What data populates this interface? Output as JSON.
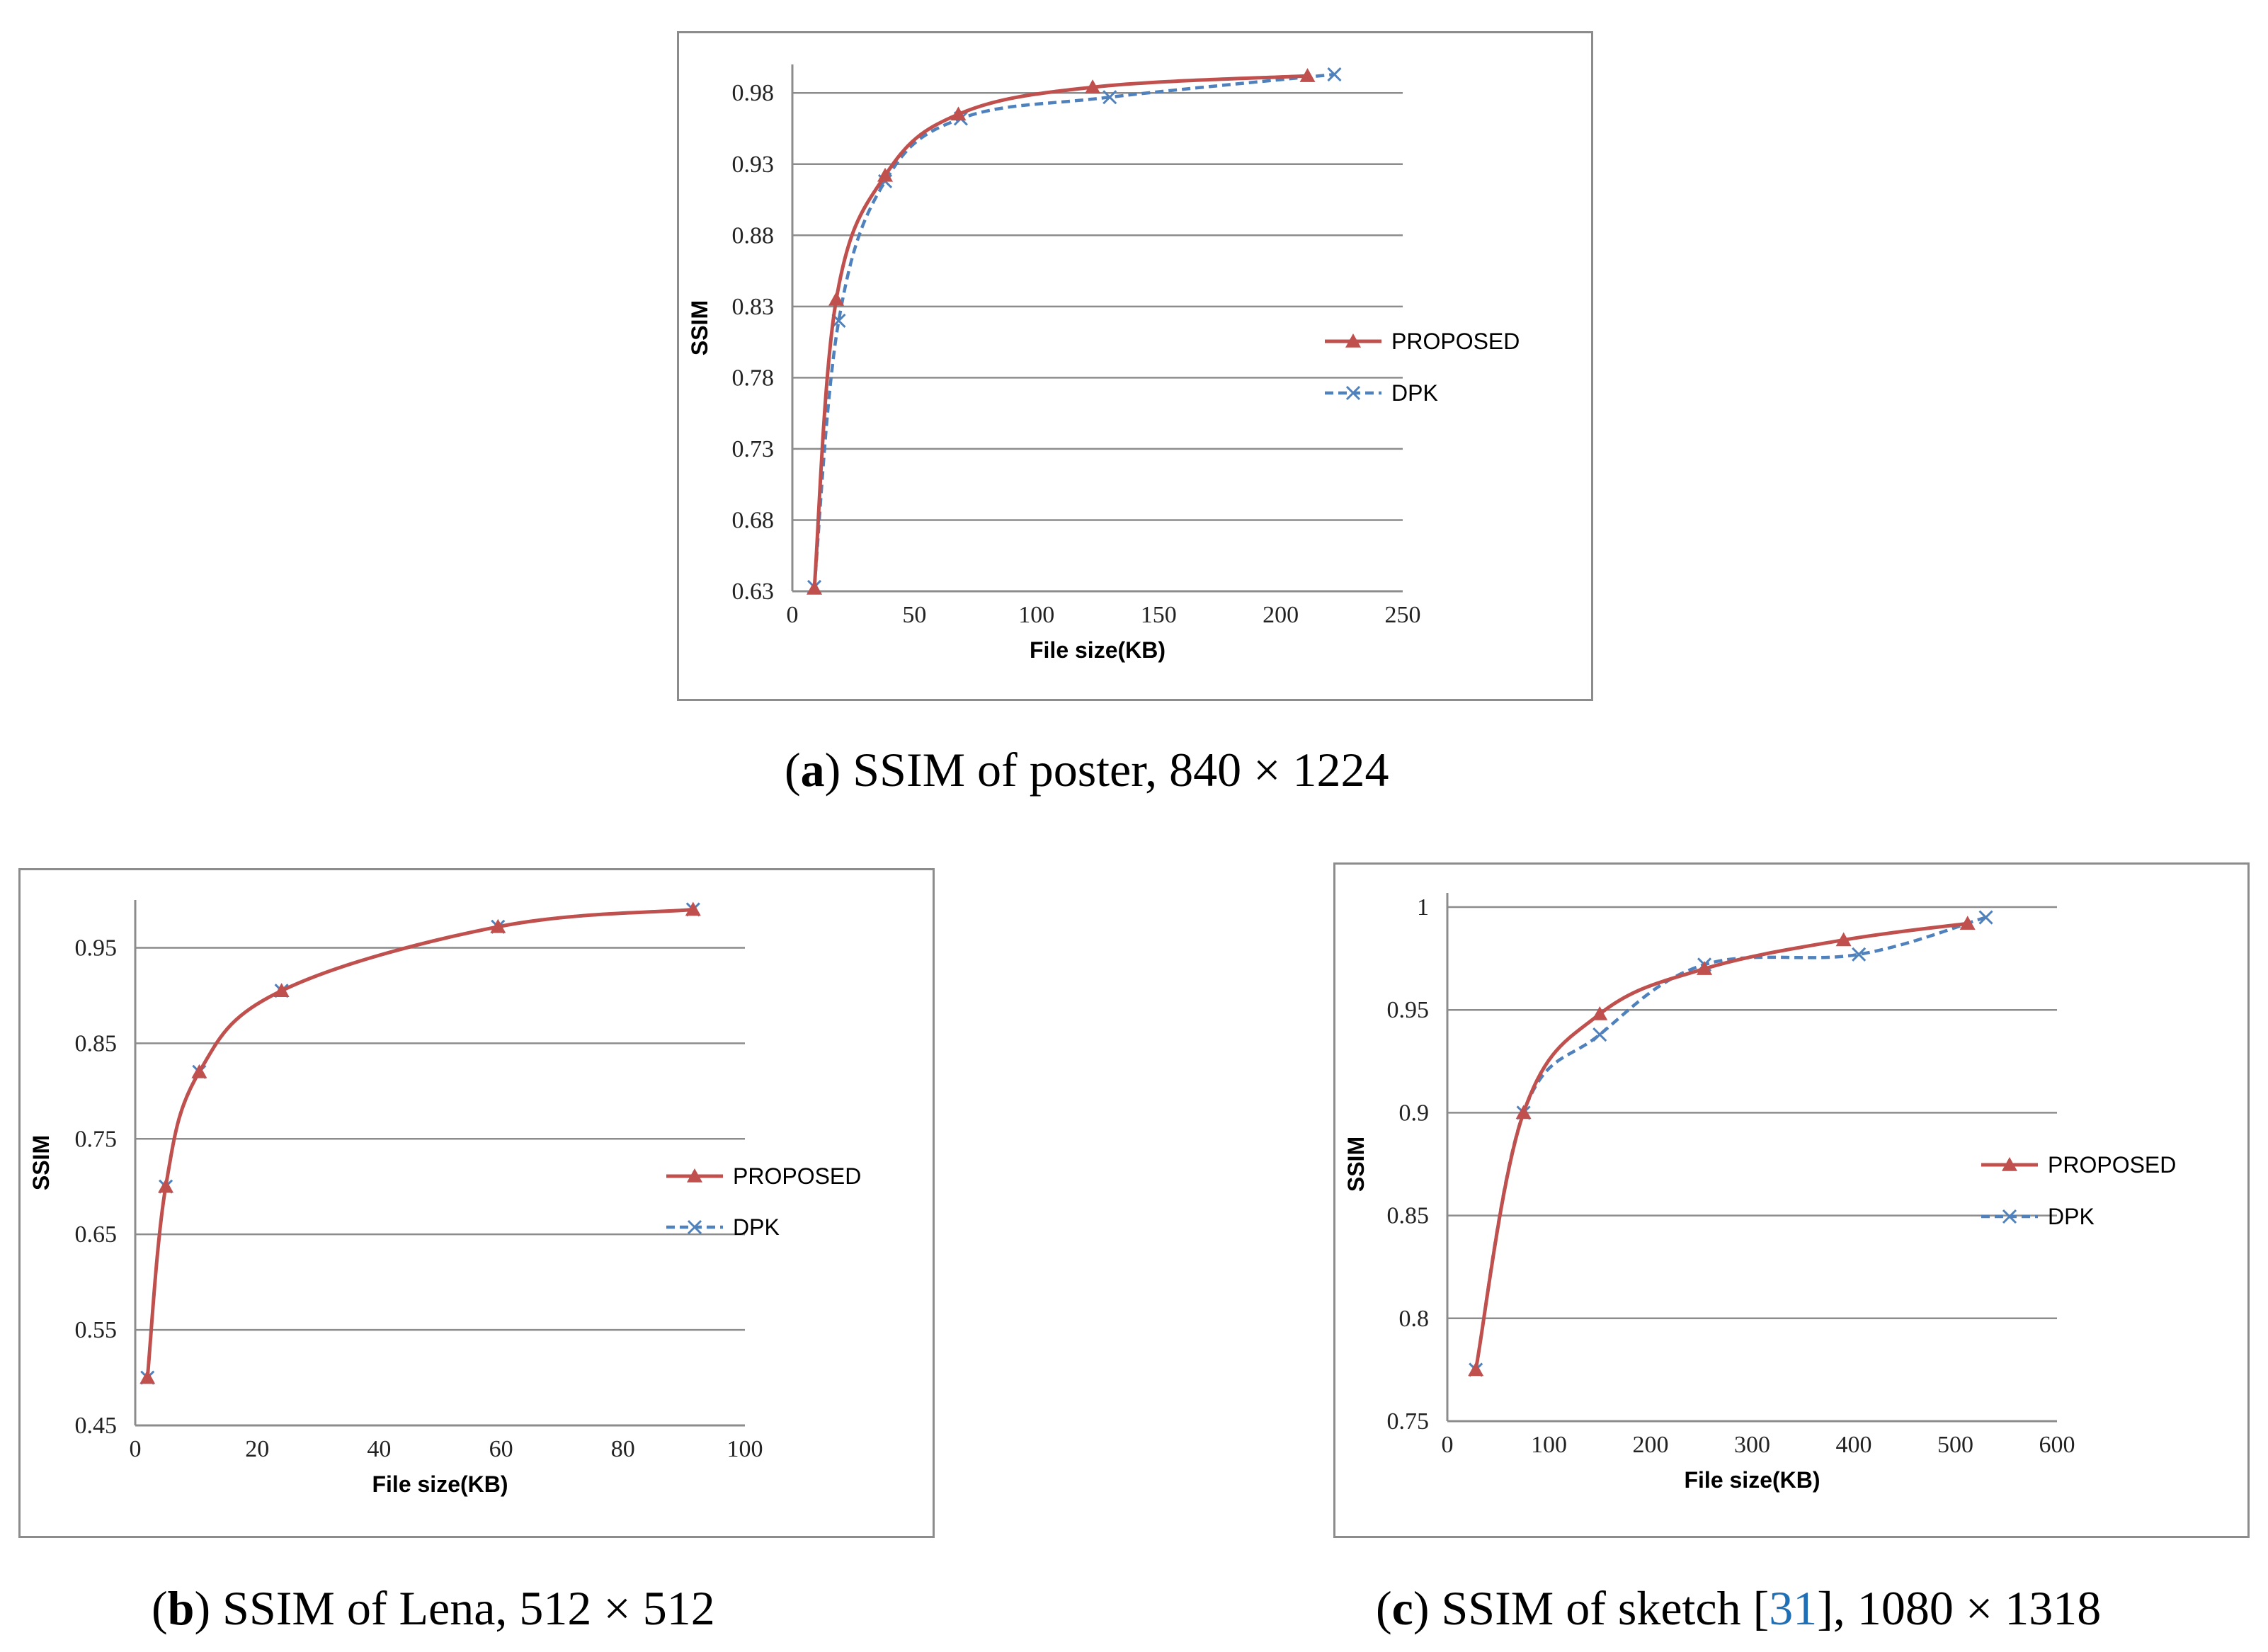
{
  "series_colors": {
    "proposed": "#c0504d",
    "dpk": "#4f81bd"
  },
  "chart_data": [
    {
      "id": "a",
      "type": "line",
      "ylabel": "SSIM",
      "xlabel": "File size(KB)",
      "xlim": [
        0,
        250
      ],
      "ylim": [
        0.63,
        1.0
      ],
      "xticks": [
        0,
        50,
        100,
        150,
        200,
        250
      ],
      "yticks": [
        0.63,
        0.68,
        0.73,
        0.78,
        0.83,
        0.88,
        0.93,
        0.98
      ],
      "xtick_labels": [
        "0",
        "50",
        "100",
        "150",
        "200",
        "250"
      ],
      "ytick_labels": [
        "0.63",
        "0.68",
        "0.73",
        "0.78",
        "0.83",
        "0.88",
        "0.93",
        "0.98"
      ],
      "series": [
        {
          "name": "PROPOSED",
          "x": [
            9,
            18,
            38,
            68,
            123,
            211
          ],
          "y": [
            0.632,
            0.835,
            0.922,
            0.965,
            0.984,
            0.992
          ]
        },
        {
          "name": "DPK",
          "x": [
            9,
            19,
            38,
            69,
            130,
            222
          ],
          "y": [
            0.633,
            0.82,
            0.918,
            0.962,
            0.977,
            0.993
          ]
        }
      ],
      "legend": [
        "PROPOSED",
        "DPK"
      ],
      "caption_label": "a",
      "caption_text": ") SSIM of poster, 840 × 1224"
    },
    {
      "id": "b",
      "type": "line",
      "ylabel": "SSIM",
      "xlabel": "File size(KB)",
      "xlim": [
        0,
        100
      ],
      "ylim": [
        0.45,
        1.0
      ],
      "xticks": [
        0,
        20,
        40,
        60,
        80,
        100
      ],
      "yticks": [
        0.45,
        0.55,
        0.65,
        0.75,
        0.85,
        0.95
      ],
      "xtick_labels": [
        "0",
        "20",
        "40",
        "60",
        "80",
        "100"
      ],
      "ytick_labels": [
        "0.45",
        "0.55",
        "0.65",
        "0.75",
        "0.85",
        "0.95"
      ],
      "series": [
        {
          "name": "PROPOSED",
          "x": [
            2,
            5,
            10.5,
            24,
            59.5,
            91.5
          ],
          "y": [
            0.5,
            0.7,
            0.82,
            0.905,
            0.972,
            0.99
          ]
        },
        {
          "name": "DPK",
          "x": [
            2,
            5,
            10.5,
            24,
            59.5,
            91.5
          ],
          "y": [
            0.5,
            0.7,
            0.82,
            0.905,
            0.972,
            0.99
          ]
        }
      ],
      "legend": [
        "PROPOSED",
        "DPK"
      ],
      "caption_label": "b",
      "caption_text": ") SSIM of Lena, 512 × 512"
    },
    {
      "id": "c",
      "type": "line",
      "ylabel": "SSIM",
      "xlabel": "File size(KB)",
      "xlim": [
        0,
        600
      ],
      "ylim": [
        0.75,
        1.0
      ],
      "xticks": [
        0,
        100,
        200,
        300,
        400,
        500,
        600
      ],
      "yticks": [
        0.75,
        0.8,
        0.85,
        0.9,
        0.95,
        1.0
      ],
      "xtick_labels": [
        "0",
        "100",
        "200",
        "300",
        "400",
        "500",
        "600"
      ],
      "ytick_labels": [
        "0.75",
        "0.8",
        "0.85",
        "0.9",
        "0.95",
        "1"
      ],
      "series": [
        {
          "name": "PROPOSED",
          "x": [
            28,
            75,
            150,
            253,
            390,
            512
          ],
          "y": [
            0.775,
            0.9,
            0.948,
            0.97,
            0.984,
            0.992
          ]
        },
        {
          "name": "DPK",
          "x": [
            28,
            75,
            150,
            253,
            405,
            530
          ],
          "y": [
            0.775,
            0.9,
            0.938,
            0.972,
            0.977,
            0.995
          ]
        }
      ],
      "legend": [
        "PROPOSED",
        "DPK"
      ],
      "caption_label": "c",
      "caption_pre": ") SSIM of sketch [",
      "caption_ref": "31",
      "caption_post": "], 1080 × 1318"
    }
  ]
}
